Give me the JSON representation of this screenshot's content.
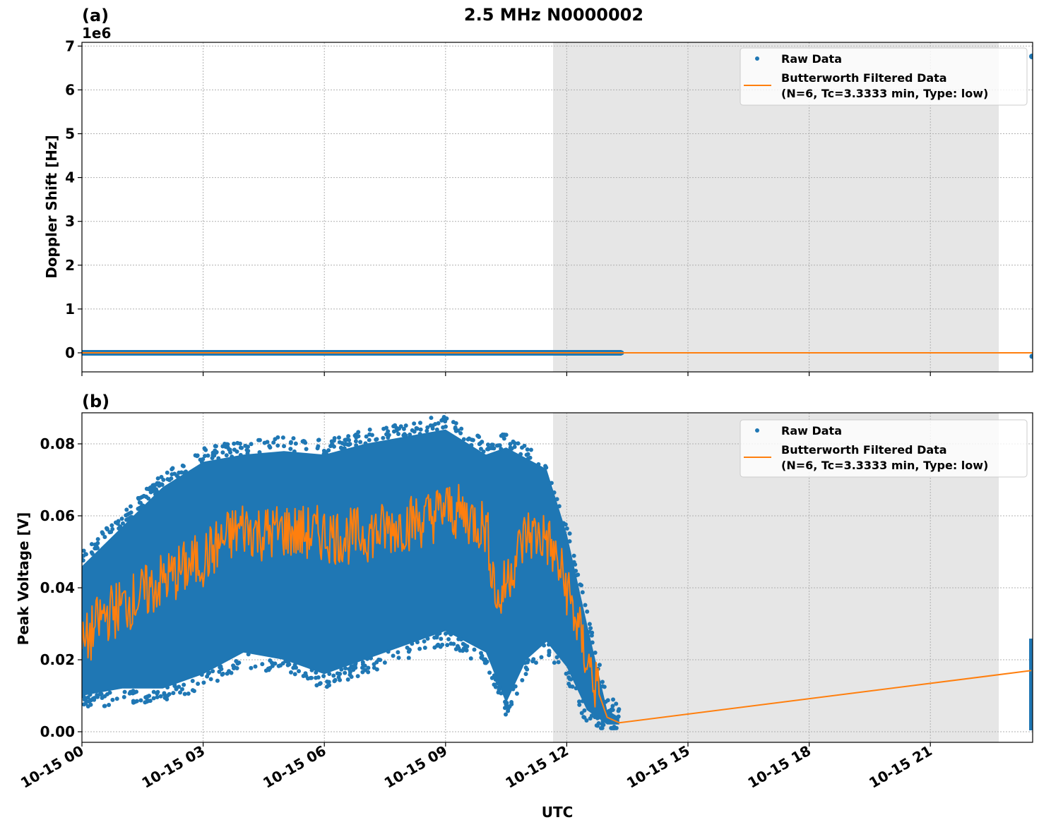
{
  "figure": {
    "title": "2.5 MHz N0000002",
    "xlabel": "UTC",
    "x_ticks": [
      "10-15 00",
      "10-15 03",
      "10-15 06",
      "10-15 09",
      "10-15 12",
      "10-15 15",
      "10-15 18",
      "10-15 21"
    ],
    "x_tick_hours": [
      0,
      3,
      6,
      9,
      12,
      15,
      18,
      21
    ],
    "x_range_hours": [
      0,
      23.52
    ],
    "shaded_region_hours": [
      11.66,
      22.68
    ],
    "colors": {
      "raw": "#1f77b4",
      "filtered": "#ff7f0e",
      "shade": "#e6e6e6",
      "grid": "#b0b0b0"
    }
  },
  "panels": {
    "a": {
      "label": "(a)",
      "ylabel": "Doppler Shift [Hz]",
      "offset_text": "1e6",
      "y_ticks": [
        "0",
        "1",
        "2",
        "3",
        "4",
        "5",
        "6",
        "7"
      ],
      "legend": {
        "raw": "Raw Data",
        "filtered_1": "Butterworth Filtered Data",
        "filtered_2": "(N=6, Tc=3.3333 min, Type: low)"
      }
    },
    "b": {
      "label": "(b)",
      "ylabel": "Peak Voltage [V]",
      "y_ticks": [
        "0.00",
        "0.02",
        "0.04",
        "0.06",
        "0.08"
      ],
      "legend": {
        "raw": "Raw Data",
        "filtered_1": "Butterworth Filtered Data",
        "filtered_2": "(N=6, Tc=3.3333 min, Type: low)"
      }
    }
  },
  "chart_data": [
    {
      "type": "scatter",
      "title": "2.5 MHz N0000002",
      "panel": "(a)",
      "xlabel": "UTC",
      "ylabel": "Doppler Shift [Hz]",
      "y_scale_offset": "1e6",
      "ylim": [
        -450000,
        7100000
      ],
      "x_tick_labels": [
        "10-15 00",
        "10-15 03",
        "10-15 06",
        "10-15 09",
        "10-15 12",
        "10-15 15",
        "10-15 18",
        "10-15 21"
      ],
      "grid": true,
      "legend_position": "upper right",
      "shaded_span_utc": [
        "11:40",
        "22:41"
      ],
      "series": [
        {
          "name": "Raw Data",
          "style": "points",
          "color": "#1f77b4",
          "description": "Dense band at ~0 Hz from 00:00 to ~13:20 UTC; single outlier points near 6.75e6 Hz and ~0 at 23:30",
          "x_hours": [
            0,
            13.3,
            23.5,
            23.5
          ],
          "y": [
            0,
            0,
            6750000,
            -100000
          ]
        },
        {
          "name": "Butterworth Filtered Data (N=6, Tc=3.3333 min, Type: low)",
          "style": "line",
          "color": "#ff7f0e",
          "x_hours": [
            0,
            13.3,
            23.5
          ],
          "y": [
            0,
            0,
            0
          ]
        }
      ]
    },
    {
      "type": "scatter",
      "panel": "(b)",
      "xlabel": "UTC",
      "ylabel": "Peak Voltage [V]",
      "ylim": [
        -0.003,
        0.0885
      ],
      "x_tick_labels": [
        "10-15 00",
        "10-15 03",
        "10-15 06",
        "10-15 09",
        "10-15 12",
        "10-15 15",
        "10-15 18",
        "10-15 21"
      ],
      "grid": true,
      "legend_position": "upper right",
      "shaded_span_utc": [
        "11:40",
        "22:41"
      ],
      "series": [
        {
          "name": "Raw Data",
          "style": "points",
          "color": "#1f77b4",
          "x_hours": [
            0,
            1,
            2,
            3,
            4,
            5,
            6,
            7,
            8,
            9,
            10,
            10.5,
            11,
            11.5,
            12,
            12.5,
            13,
            13.3,
            23.5
          ],
          "y_min": [
            0.01,
            0.012,
            0.012,
            0.016,
            0.022,
            0.02,
            0.016,
            0.02,
            0.024,
            0.028,
            0.022,
            0.008,
            0.02,
            0.025,
            0.018,
            0.006,
            0.002,
            0.002,
            0.001
          ],
          "y_max": [
            0.046,
            0.057,
            0.068,
            0.075,
            0.077,
            0.078,
            0.077,
            0.08,
            0.082,
            0.084,
            0.077,
            0.079,
            0.076,
            0.073,
            0.055,
            0.03,
            0.006,
            0.004,
            0.025
          ]
        },
        {
          "name": "Butterworth Filtered Data (N=6, Tc=3.3333 min, Type: low)",
          "style": "line",
          "color": "#ff7f0e",
          "x_hours": [
            0,
            0.5,
            1,
            1.5,
            2,
            2.5,
            3,
            3.5,
            4,
            4.5,
            5,
            5.5,
            6,
            6.5,
            7,
            7.5,
            8,
            8.5,
            9,
            9.5,
            10,
            10.3,
            10.6,
            11,
            11.5,
            12,
            12.5,
            13,
            13.3,
            23.5
          ],
          "y": [
            0.023,
            0.032,
            0.035,
            0.038,
            0.042,
            0.045,
            0.048,
            0.053,
            0.057,
            0.055,
            0.056,
            0.055,
            0.055,
            0.054,
            0.055,
            0.056,
            0.058,
            0.059,
            0.062,
            0.06,
            0.057,
            0.035,
            0.045,
            0.055,
            0.054,
            0.04,
            0.02,
            0.004,
            0.0025,
            0.017
          ]
        }
      ]
    }
  ]
}
